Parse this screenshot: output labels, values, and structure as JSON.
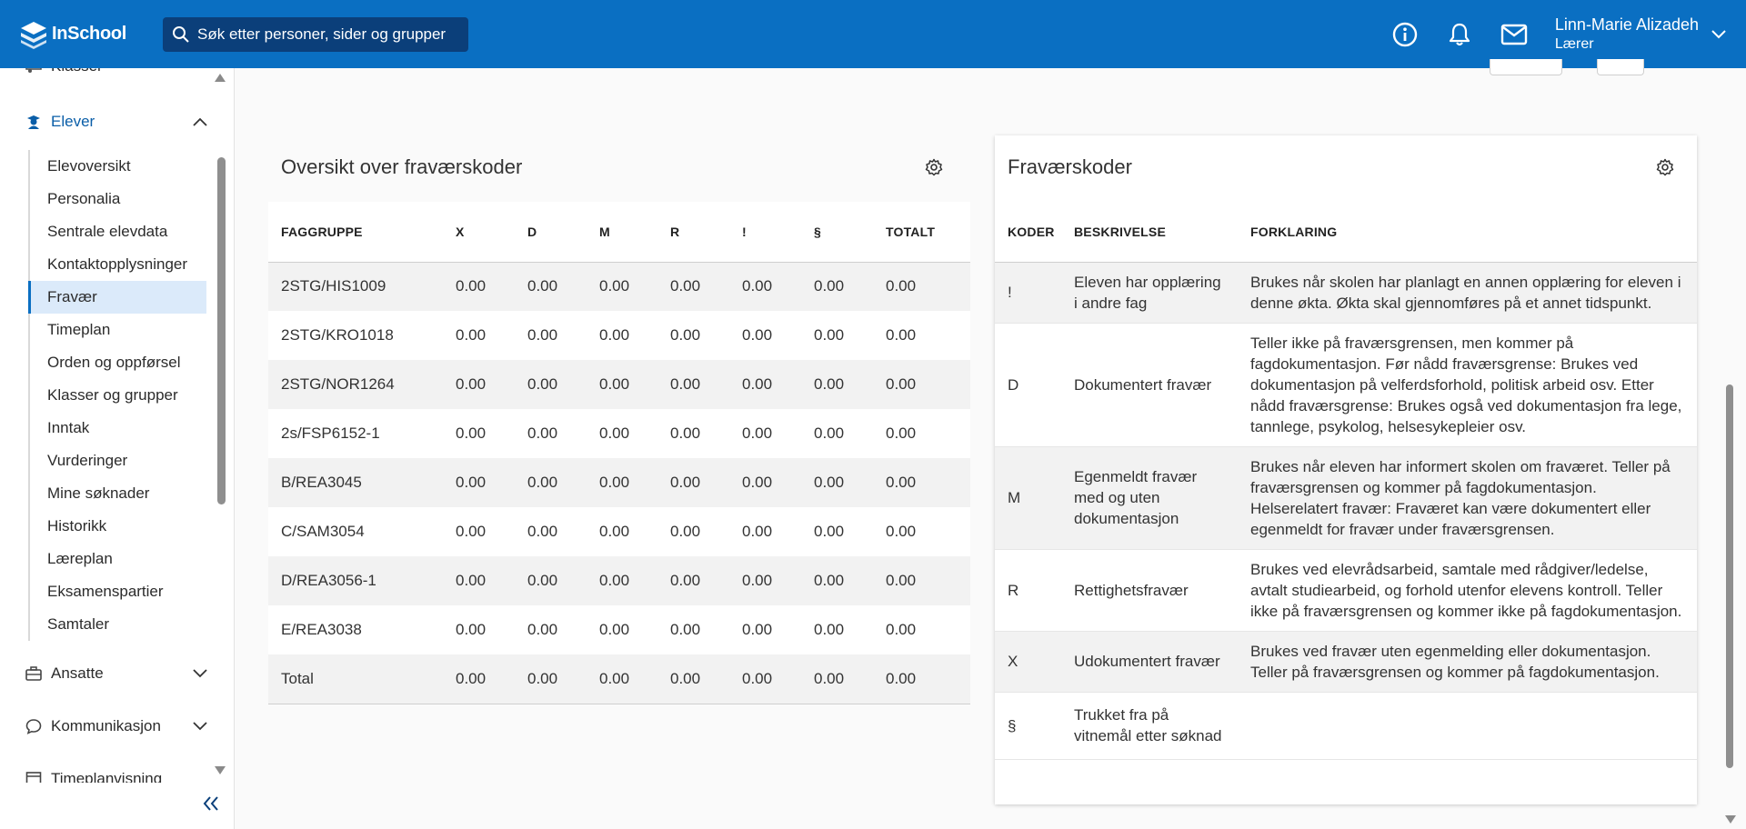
{
  "app": {
    "logo_text": "InSchool",
    "search_placeholder": "Søk etter personer, sider og grupper",
    "user_name": "Linn-Marie Alizadeh",
    "user_role": "Lærer",
    "accent": "#0a6fc2"
  },
  "sidebar": {
    "partial_top": "Klasser",
    "section_active": "Elever",
    "items": [
      {
        "label": "Elevoversikt"
      },
      {
        "label": "Personalia"
      },
      {
        "label": "Sentrale elevdata"
      },
      {
        "label": "Kontaktopplysninger"
      },
      {
        "label": "Fravær"
      },
      {
        "label": "Timeplan"
      },
      {
        "label": "Orden og oppførsel"
      },
      {
        "label": "Klasser og grupper"
      },
      {
        "label": "Inntak"
      },
      {
        "label": "Vurderinger"
      },
      {
        "label": "Mine søknader"
      },
      {
        "label": "Historikk"
      },
      {
        "label": "Læreplan"
      },
      {
        "label": "Eksamenspartier"
      },
      {
        "label": "Samtaler"
      }
    ],
    "sections_below": [
      "Ansatte",
      "Kommunikasjon"
    ],
    "partial_bottom": "Timeplanvisning"
  },
  "overview": {
    "title": "Oversikt over fraværskoder",
    "headers": [
      "FAGGRUPPE",
      "X",
      "D",
      "M",
      "R",
      "!",
      "§",
      "TOTALT"
    ],
    "rows": [
      [
        "2STG/HIS1009",
        "0.00",
        "0.00",
        "0.00",
        "0.00",
        "0.00",
        "0.00",
        "0.00"
      ],
      [
        "2STG/KRO1018",
        "0.00",
        "0.00",
        "0.00",
        "0.00",
        "0.00",
        "0.00",
        "0.00"
      ],
      [
        "2STG/NOR1264",
        "0.00",
        "0.00",
        "0.00",
        "0.00",
        "0.00",
        "0.00",
        "0.00"
      ],
      [
        "2s/FSP6152-1",
        "0.00",
        "0.00",
        "0.00",
        "0.00",
        "0.00",
        "0.00",
        "0.00"
      ],
      [
        "B/REA3045",
        "0.00",
        "0.00",
        "0.00",
        "0.00",
        "0.00",
        "0.00",
        "0.00"
      ],
      [
        "C/SAM3054",
        "0.00",
        "0.00",
        "0.00",
        "0.00",
        "0.00",
        "0.00",
        "0.00"
      ],
      [
        "D/REA3056-1",
        "0.00",
        "0.00",
        "0.00",
        "0.00",
        "0.00",
        "0.00",
        "0.00"
      ],
      [
        "E/REA3038",
        "0.00",
        "0.00",
        "0.00",
        "0.00",
        "0.00",
        "0.00",
        "0.00"
      ],
      [
        "Total",
        "0.00",
        "0.00",
        "0.00",
        "0.00",
        "0.00",
        "0.00",
        "0.00"
      ]
    ]
  },
  "codes": {
    "title": "Fraværskoder",
    "headers": [
      "KODER",
      "BESKRIVELSE",
      "FORKLARING"
    ],
    "rows": [
      {
        "code": "!",
        "desc": "Eleven har opplæring i andre fag",
        "expl": "Brukes når skolen har planlagt en annen opplæring for eleven i denne økta. Økta skal gjennomføres på et annet tidspunkt."
      },
      {
        "code": "D",
        "desc": "Dokumentert fravær",
        "expl": "Teller ikke på fraværsgrensen, men kommer på fagdokumentasjon. Før nådd fraværsgrense: Brukes ved dokumentasjon på velferdsforhold, politisk arbeid osv. Etter nådd fraværsgrense: Brukes også ved dokumentasjon fra lege, tannlege, psykolog, helsesykepleier osv."
      },
      {
        "code": "M",
        "desc": "Egenmeldt fravær med og uten dokumentasjon",
        "expl": "Brukes når eleven har informert skolen om fraværet. Teller på fraværsgrensen og kommer på fagdokumentasjon. Helserelatert fravær: Fraværet kan være dokumentert eller egenmeldt for fravær under fraværsgrensen."
      },
      {
        "code": "R",
        "desc": "Rettighetsfravær",
        "expl": "Brukes ved elevrådsarbeid, samtale med rådgiver/ledelse, avtalt studiearbeid, og forhold utenfor elevens kontroll. Teller ikke på fraværsgrensen og kommer ikke på fagdokumentasjon."
      },
      {
        "code": "X",
        "desc": "Udokumentert fravær",
        "expl": "Brukes ved fravær uten egenmelding eller dokumentasjon. Teller på fraværsgrensen og kommer på fagdokumentasjon."
      },
      {
        "code": "§",
        "desc": "Trukket fra på vitnemål etter søknad",
        "expl": ""
      }
    ]
  }
}
